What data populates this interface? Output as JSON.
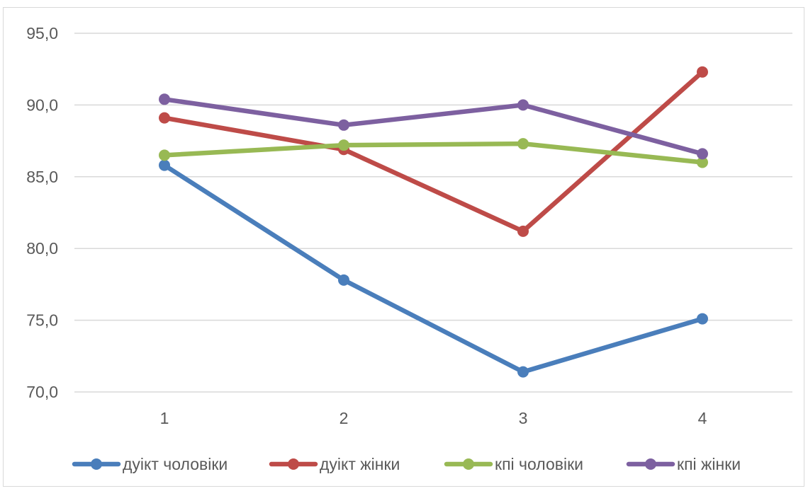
{
  "chart_data": {
    "type": "line",
    "categories": [
      "1",
      "2",
      "3",
      "4"
    ],
    "ylim": [
      70,
      95
    ],
    "yticks": [
      70,
      75,
      80,
      85,
      90,
      95
    ],
    "ytick_labels": [
      "70,0",
      "75,0",
      "80,0",
      "85,0",
      "90,0",
      "95,0"
    ],
    "grid": true,
    "legend_position": "bottom",
    "series": [
      {
        "name": "дуікт чоловіки",
        "color": "#4a7ebb",
        "values": [
          85.8,
          77.8,
          71.4,
          75.1
        ]
      },
      {
        "name": "дуікт жінки",
        "color": "#be4b48",
        "values": [
          89.1,
          86.9,
          81.2,
          92.3
        ]
      },
      {
        "name": "кпі чоловіки",
        "color": "#98b954",
        "values": [
          86.5,
          87.2,
          87.3,
          86.0
        ]
      },
      {
        "name": "кпі жінки",
        "color": "#7d60a0",
        "values": [
          90.4,
          88.6,
          90.0,
          86.6
        ]
      }
    ]
  }
}
